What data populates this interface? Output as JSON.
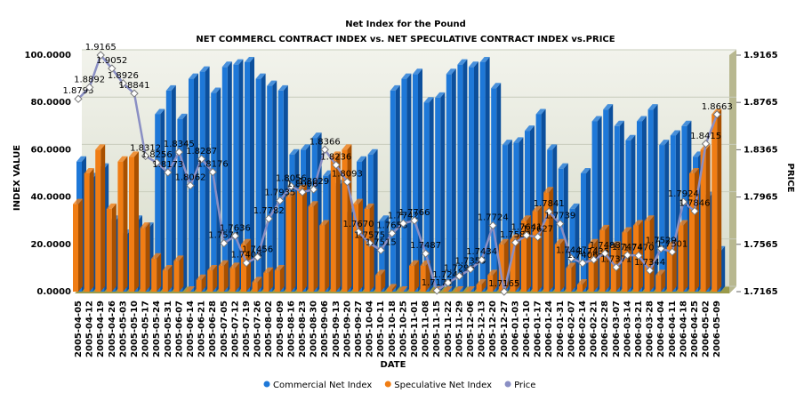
{
  "chart_data": {
    "type": "bar-line",
    "title": "Net Index for the Pound",
    "subtitle": "NET COMMERCL CONTRACT INDEX vs. NET SPECULATIVE CONTRACT INDEX vs.PRICE",
    "x_label": "DATE",
    "y_label": "INDEX VALUE",
    "y2_label": "PRICE",
    "categories": [
      "2005-04-05",
      "2005-04-12",
      "2005-04-19",
      "2005-04-26",
      "2005-05-03",
      "2005-05-10",
      "2005-05-17",
      "2005-05-24",
      "2005-05-31",
      "2005-06-07",
      "2005-06-14",
      "2005-06-21",
      "2005-06-28",
      "2005-07-05",
      "2005-07-12",
      "2005-07-19",
      "2005-07-26",
      "2005-08-02",
      "2005-08-09",
      "2005-08-16",
      "2005-08-23",
      "2005-08-30",
      "2005-09-06",
      "2005-09-13",
      "2005-09-20",
      "2005-09-27",
      "2005-10-04",
      "2005-10-11",
      "2005-10-18",
      "2005-10-25",
      "2005-11-01",
      "2005-11-08",
      "2005-11-15",
      "2005-11-22",
      "2005-11-29",
      "2005-12-06",
      "2005-12-13",
      "2005-12-20",
      "2005-12-27",
      "2006-01-03",
      "2006-01-10",
      "2006-01-17",
      "2006-01-24",
      "2006-01-31",
      "2006-02-07",
      "2006-02-14",
      "2006-02-21",
      "2006-02-28",
      "2006-03-07",
      "2006-03-14",
      "2006-03-21",
      "2006-03-28",
      "2006-04-04",
      "2006-04-11",
      "2006-04-18",
      "2006-04-25",
      "2006-05-02",
      "2006-05-09"
    ],
    "series": [
      {
        "name": "Commercial Net Index",
        "color": "#1e78d8",
        "values": [
          55,
          48,
          52,
          30,
          24,
          30,
          27,
          75,
          85,
          73,
          90,
          93,
          84,
          95,
          96,
          97,
          90,
          87,
          85,
          58,
          60,
          65,
          49,
          45,
          33,
          55,
          58,
          30,
          85,
          90,
          92,
          80,
          82,
          92,
          96,
          95,
          97,
          86,
          62,
          63,
          68,
          75,
          60,
          52,
          35,
          50,
          72,
          77,
          70,
          64,
          72,
          77,
          62,
          66,
          70,
          57,
          40,
          17
        ]
      },
      {
        "name": "Speculative Net Index",
        "color": "#f07d14",
        "values": [
          37,
          50,
          60,
          35,
          55,
          57,
          27,
          14,
          9,
          13,
          0,
          5,
          9,
          11,
          10,
          20,
          4,
          8,
          9,
          40,
          43,
          36,
          28,
          57,
          60,
          37,
          35,
          7,
          1,
          0,
          11,
          11,
          0,
          0,
          0,
          0,
          3,
          7,
          20,
          22,
          30,
          34,
          42,
          20,
          10,
          3,
          20,
          26,
          19,
          25,
          28,
          30,
          7,
          19,
          28,
          50,
          60,
          75
        ]
      },
      {
        "name": "Price",
        "color": "#8a8fc4",
        "axis": "y2",
        "values": [
          1.8795,
          1.8892,
          1.9165,
          1.9052,
          1.8926,
          1.8841,
          1.8312,
          1.8256,
          1.8173,
          1.8345,
          1.8062,
          1.8287,
          1.8176,
          1.7574,
          1.7636,
          1.7408,
          1.7456,
          1.7782,
          1.7935,
          1.8056,
          1.8006,
          1.8029,
          1.8366,
          1.8236,
          1.8093,
          1.767,
          1.7575,
          1.7515,
          1.7658,
          1.7742,
          1.7766,
          1.7487,
          1.7174,
          1.724,
          1.7296,
          1.7355,
          1.7434,
          1.7724,
          1.7165,
          1.758,
          1.7641,
          1.7627,
          1.7841,
          1.7739,
          1.7447,
          1.7406,
          1.7435,
          1.7488,
          1.7371,
          1.7474,
          1.747,
          1.7344,
          1.7529,
          1.7501,
          1.7924,
          1.7846,
          1.8415,
          1.8663
        ],
        "value_labels": [
          "1.8795",
          "1.8892",
          "1.9165",
          "1.9052",
          "1.8926",
          "1.8841",
          "1.8312",
          "1.8256",
          "1.8173",
          "1.8345",
          "1.8062",
          "1.8287",
          "1.8176",
          "1.7574",
          "1.7636",
          "1.7408",
          "1.7456",
          "1.7782",
          "1.7935",
          "1.8056",
          "1.8006",
          "1.8029",
          "1.8366",
          "1.8236",
          "1.8093",
          "1.7670",
          "1.7575",
          "1.7515",
          "1.7658",
          "1.7742",
          "1.7766",
          "1.7487",
          "1.7174",
          "1.7240",
          "1.7296",
          "1.7355",
          "1.7434",
          "1.7724",
          "1.7165",
          "1.7580",
          "1.7641",
          "1.7627",
          "1.7841",
          "1.7739",
          "1.7447",
          "1.7406",
          "1.7435",
          "1.7488",
          "1.7371",
          "1.7474",
          "1.7470",
          "1.7344",
          "1.7529",
          "1.7501",
          "1.7924",
          "1.7846",
          "1.8415",
          "1.8663"
        ]
      }
    ],
    "ylim": [
      0,
      100
    ],
    "yticks": [
      {
        "value": 0,
        "label": "0.0000"
      },
      {
        "value": 20,
        "label": "20.0000"
      },
      {
        "value": 40,
        "label": "40.0000"
      },
      {
        "value": 60,
        "label": "60.0000"
      },
      {
        "value": 80,
        "label": "80.0000"
      },
      {
        "value": 100,
        "label": "100.0000"
      }
    ],
    "y2lim": [
      1.7165,
      1.9165
    ],
    "y2ticks": [
      1.7165,
      1.7565,
      1.7965,
      1.8365,
      1.8765,
      1.9165
    ],
    "grid": true,
    "legend": "bottom"
  }
}
